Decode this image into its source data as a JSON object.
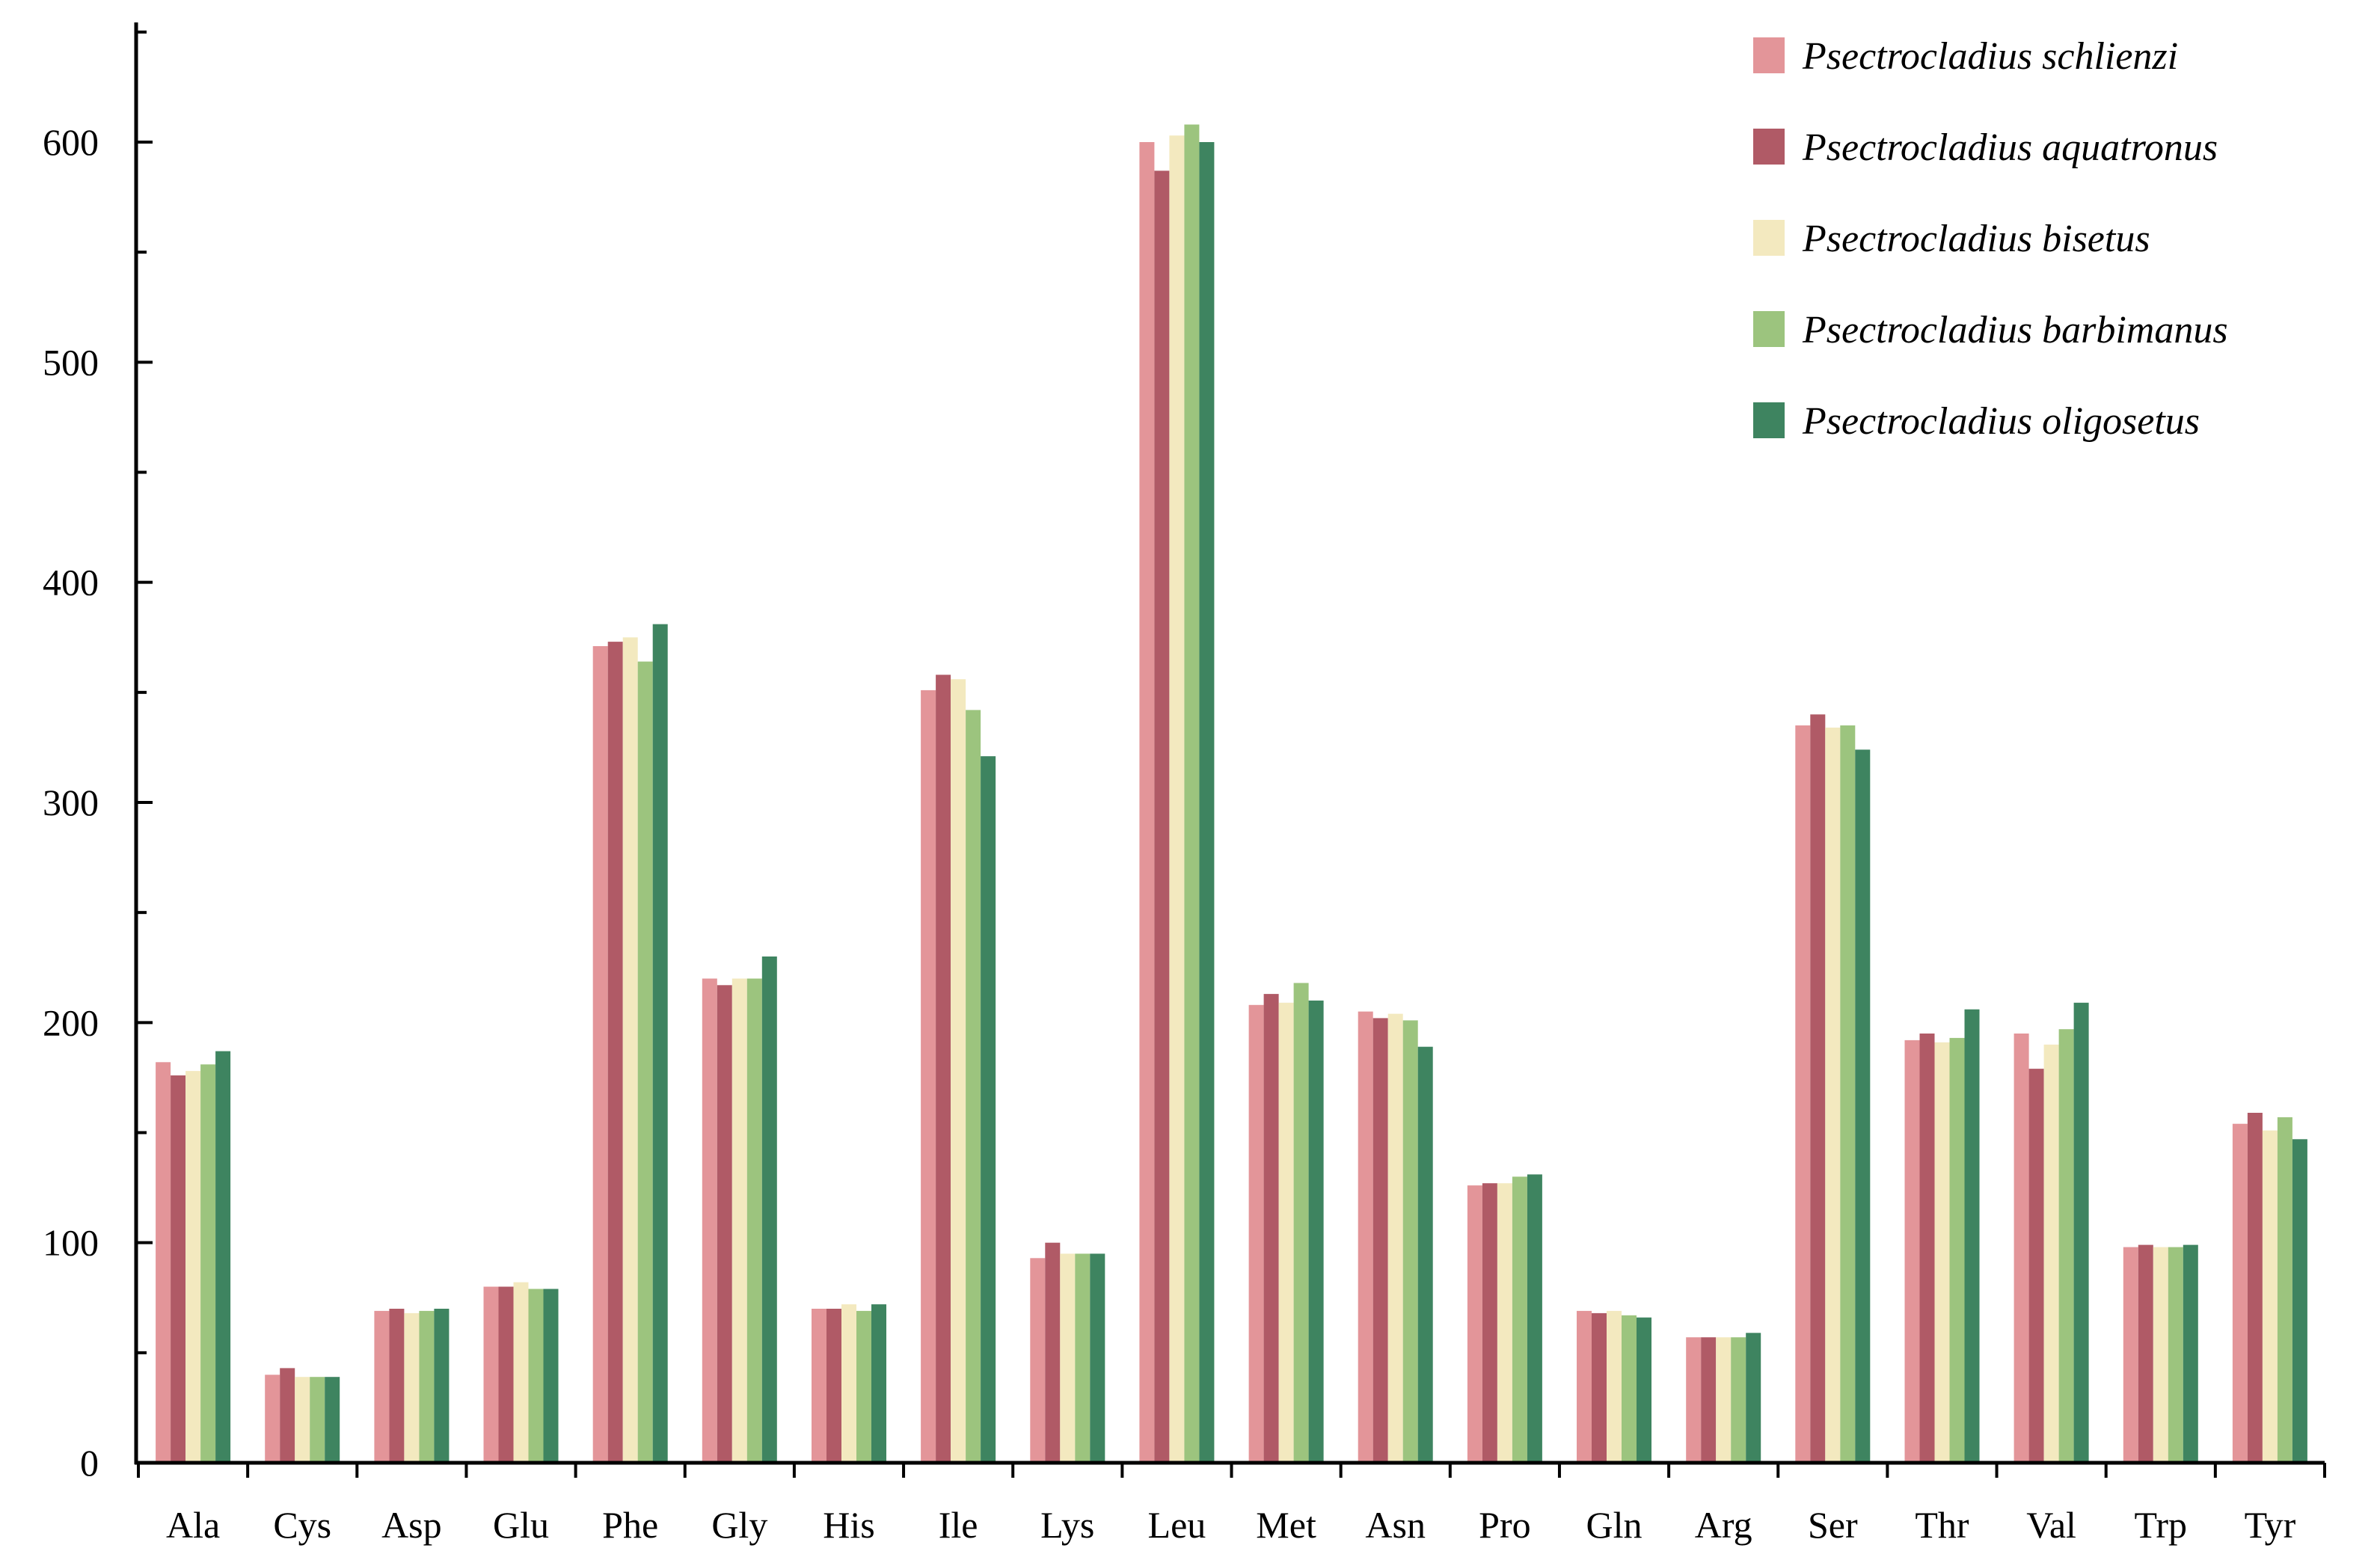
{
  "chart_data": {
    "type": "bar",
    "title": "",
    "xlabel": "",
    "ylabel": "",
    "ylim": [
      0,
      650
    ],
    "yticks": [
      0,
      100,
      200,
      300,
      400,
      500,
      600
    ],
    "ytick_labels": [
      "0",
      "100",
      "200",
      "300",
      "400",
      "500",
      "600"
    ],
    "grid": false,
    "legend_position": "top-right",
    "categories": [
      "Ala",
      "Cys",
      "Asp",
      "Glu",
      "Phe",
      "Gly",
      "His",
      "Ile",
      "Lys",
      "Leu",
      "Met",
      "Asn",
      "Pro",
      "Gln",
      "Arg",
      "Ser",
      "Thr",
      "Val",
      "Trp",
      "Tyr"
    ],
    "series": [
      {
        "name": "Psectrocladius schlienzi",
        "color": "#e39599",
        "values": [
          182,
          40,
          69,
          80,
          371,
          220,
          70,
          351,
          93,
          600,
          208,
          205,
          126,
          69,
          57,
          335,
          192,
          195,
          98,
          154
        ]
      },
      {
        "name": "Psectrocladius aquatronus",
        "color": "#b05a66",
        "values": [
          176,
          43,
          70,
          80,
          373,
          217,
          70,
          358,
          100,
          587,
          213,
          202,
          127,
          68,
          57,
          340,
          195,
          179,
          99,
          159
        ]
      },
      {
        "name": "Psectrocladius bisetus",
        "color": "#f3e9bf",
        "values": [
          178,
          39,
          68,
          82,
          375,
          220,
          72,
          356,
          95,
          603,
          209,
          204,
          127,
          69,
          57,
          334,
          191,
          190,
          98,
          151
        ]
      },
      {
        "name": "Psectrocladius barbimanus",
        "color": "#9cc47e",
        "values": [
          181,
          39,
          69,
          79,
          364,
          220,
          69,
          342,
          95,
          608,
          218,
          201,
          130,
          67,
          57,
          335,
          193,
          197,
          98,
          157
        ]
      },
      {
        "name": "Psectrocladius oligosetus",
        "color": "#3e8460",
        "values": [
          187,
          39,
          70,
          79,
          381,
          230,
          72,
          321,
          95,
          600,
          210,
          189,
          131,
          66,
          59,
          324,
          206,
          209,
          99,
          147
        ]
      }
    ]
  }
}
